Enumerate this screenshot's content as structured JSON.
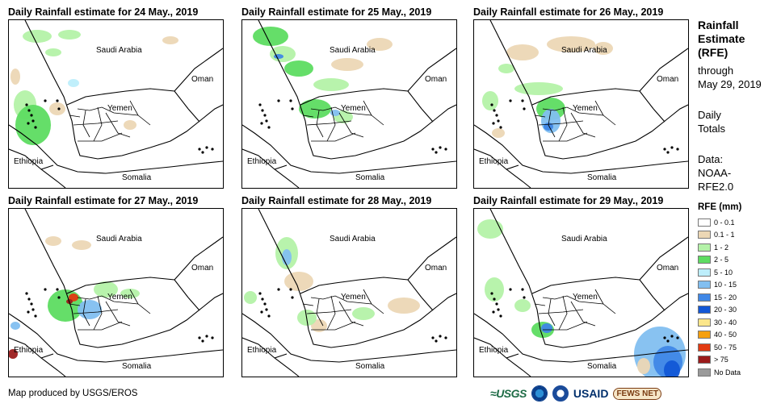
{
  "panels": [
    {
      "title": "Daily Rainfall estimate for 24 May., 2019"
    },
    {
      "title": "Daily Rainfall estimate for 25 May., 2019"
    },
    {
      "title": "Daily Rainfall estimate for 26 May., 2019"
    },
    {
      "title": "Daily Rainfall estimate for 27 May., 2019"
    },
    {
      "title": "Daily Rainfall estimate for 28 May., 2019"
    },
    {
      "title": "Daily Rainfall estimate for 29 May., 2019"
    }
  ],
  "map_labels": {
    "saudi": "Saudi Arabia",
    "oman": "Oman",
    "yemen": "Yemen",
    "ethiopia": "Ethiopia",
    "somalia": "Somalia"
  },
  "sidebar": {
    "title_lines": [
      "Rainfall",
      "Estimate",
      "(RFE)"
    ],
    "through": "through",
    "date": "May 29, 2019",
    "daily": "Daily",
    "totals": "Totals",
    "data_label": "Data:",
    "source1": "NOAA-",
    "source2": "RFE2.0"
  },
  "legend": {
    "title": "RFE (mm)",
    "items": [
      {
        "label": "0 - 0.1",
        "color": "#ffffff"
      },
      {
        "label": "0.1 - 1",
        "color": "#ecd7b5"
      },
      {
        "label": "1 - 2",
        "color": "#b4f2a8"
      },
      {
        "label": "2 - 5",
        "color": "#5ddc61"
      },
      {
        "label": "5 - 10",
        "color": "#bdeefb"
      },
      {
        "label": "10 - 15",
        "color": "#82bff0"
      },
      {
        "label": "15 - 20",
        "color": "#3f87e6"
      },
      {
        "label": "20 - 30",
        "color": "#1257d6"
      },
      {
        "label": "30 - 40",
        "color": "#fbe68a"
      },
      {
        "label": "40 - 50",
        "color": "#f6a00f"
      },
      {
        "label": "50 - 75",
        "color": "#e23a12"
      },
      {
        "label": "> 75",
        "color": "#9b1b1b"
      },
      {
        "label": "No Data",
        "color": "#9a9a9a"
      }
    ]
  },
  "footer": {
    "credit": "Map produced by USGS/EROS"
  },
  "logos": {
    "usgs": "USGS",
    "usaid": "USAID",
    "fews": "FEWS NET"
  }
}
